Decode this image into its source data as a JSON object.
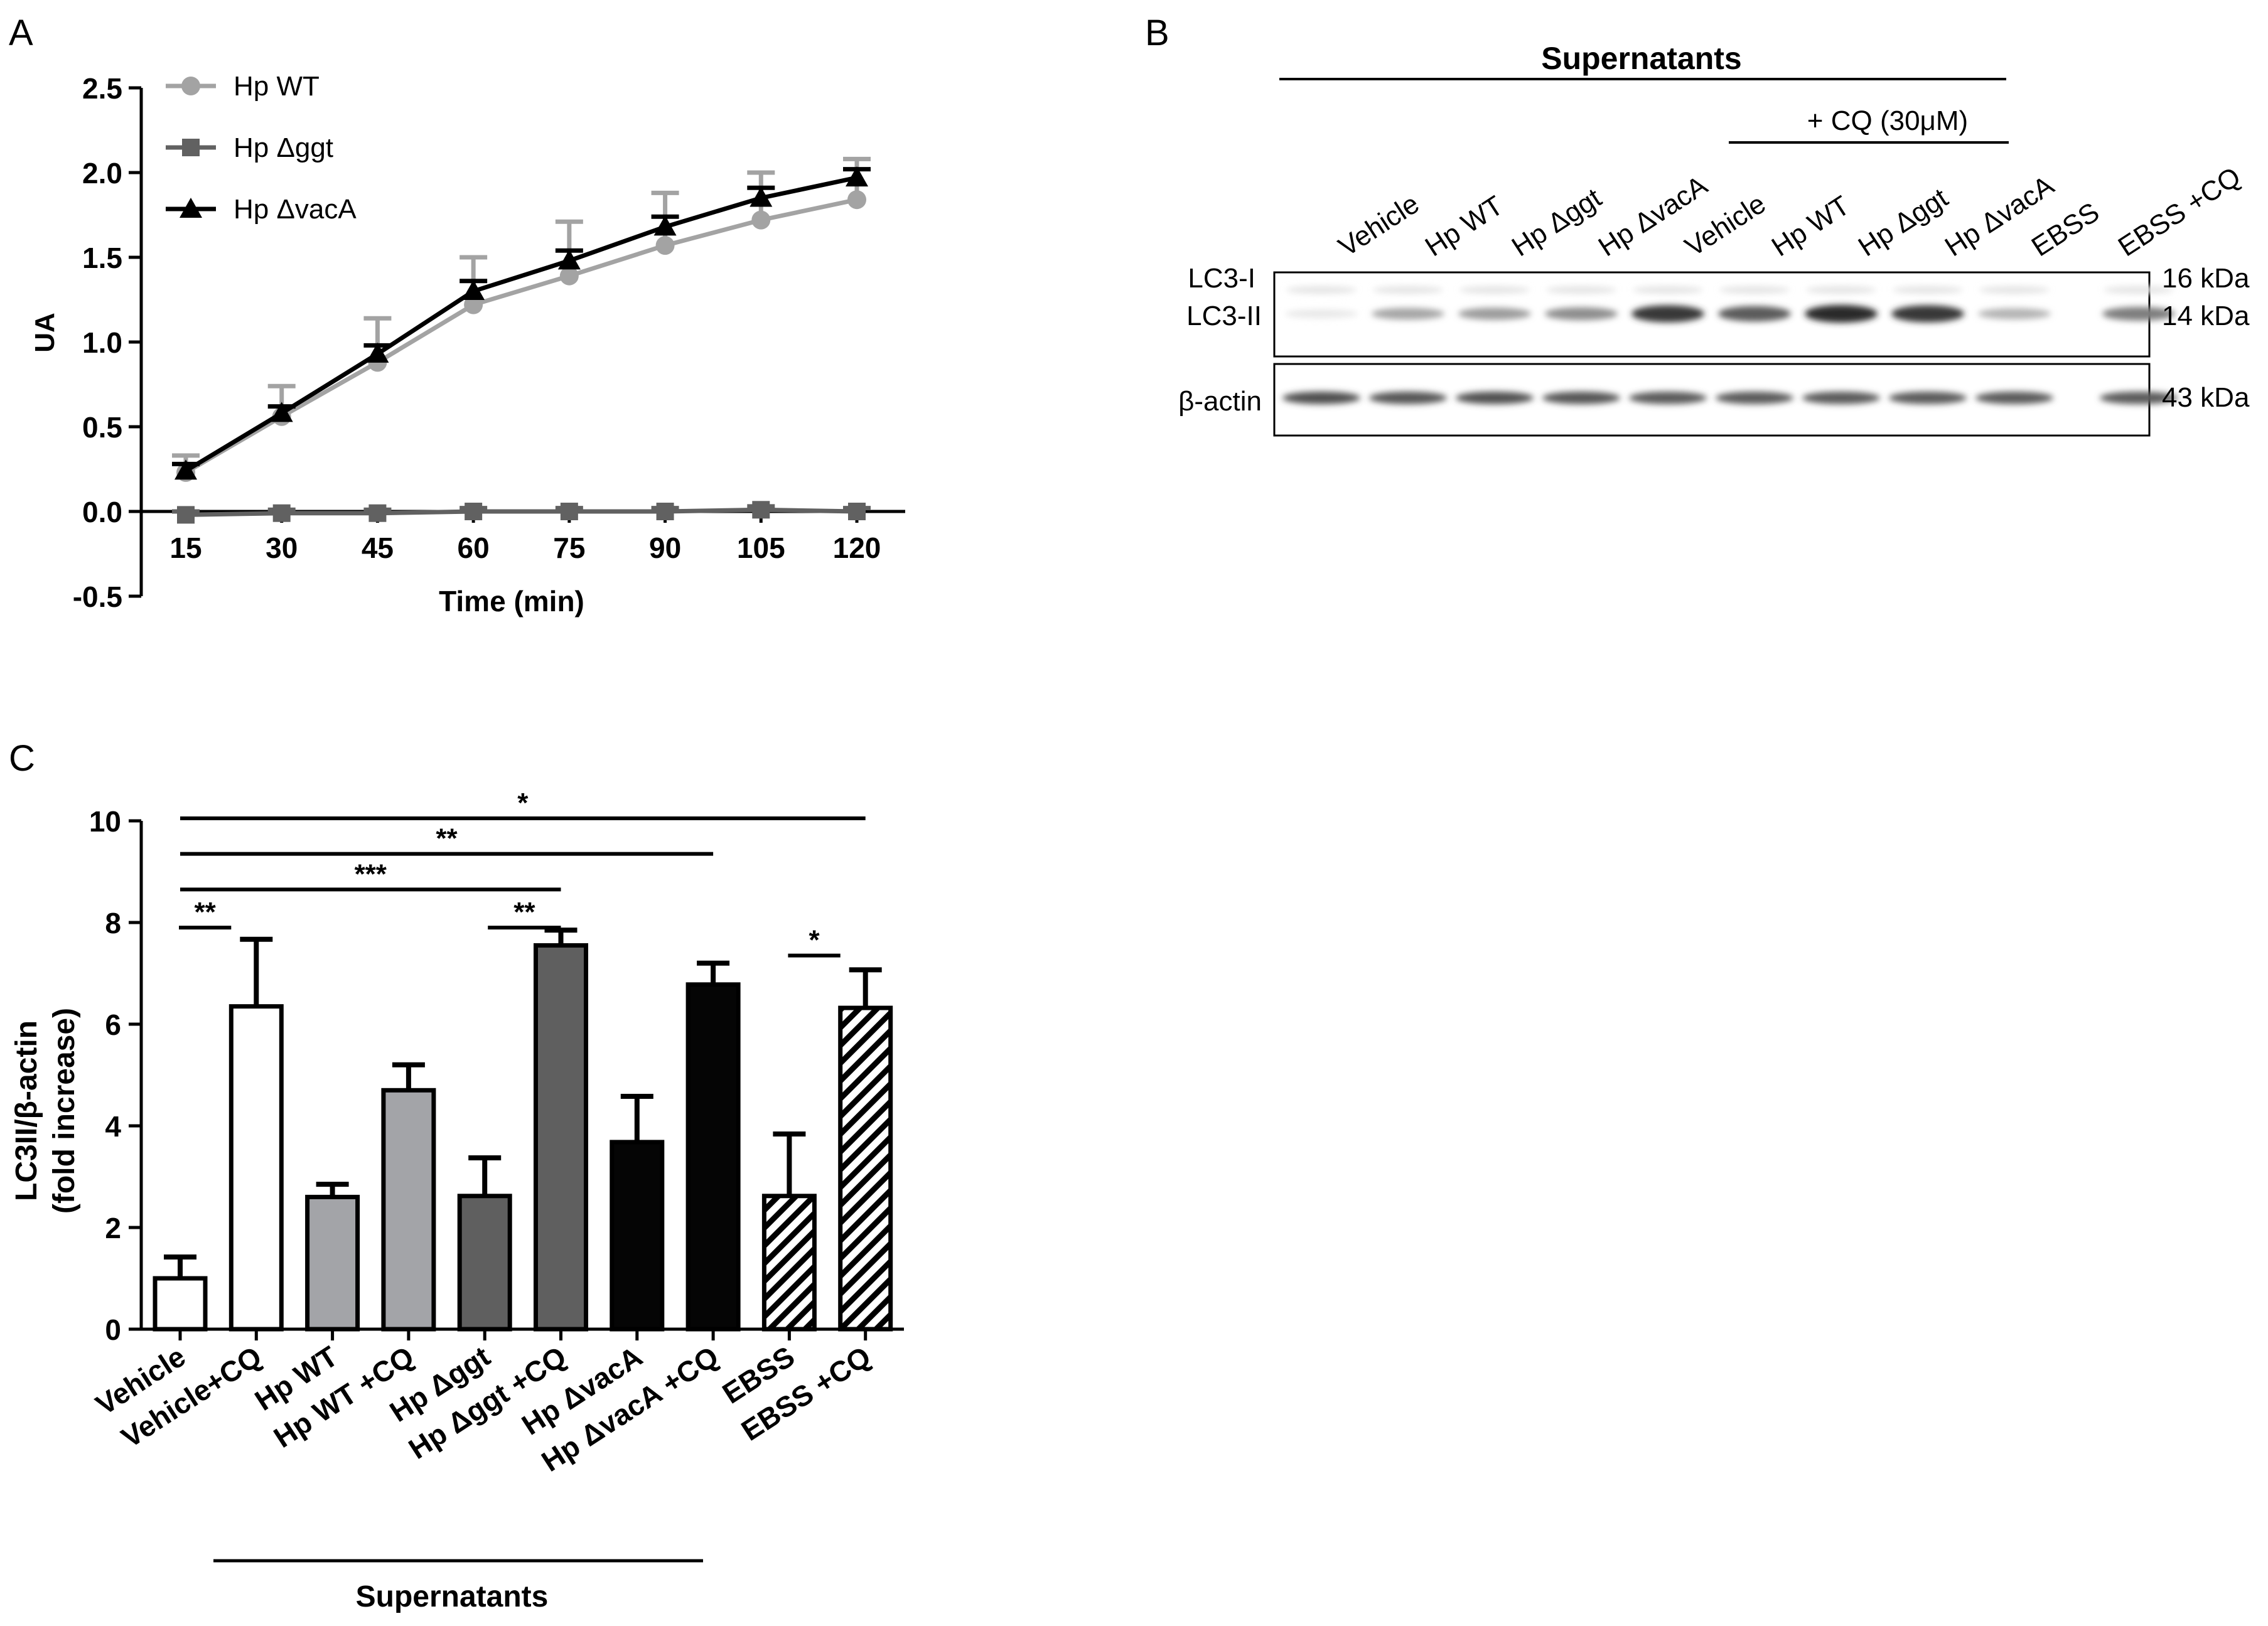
{
  "colors": {
    "wt": "#a3a3a3",
    "ggt": "#616161",
    "vaca": "#000000",
    "axis": "#000000",
    "bar_white": "#ffffff",
    "bar_wt": "#a3a4a8",
    "bar_ggt": "#5f5f5f",
    "bar_vaca": "#050505"
  },
  "chart_data": [
    {
      "panel": "A",
      "type": "line",
      "xlabel": "Time (min)",
      "ylabel": "UA",
      "ylim": [
        -0.5,
        2.5
      ],
      "y_ticks": [
        "-0.5",
        "0.0",
        "0.5",
        "1.0",
        "1.5",
        "2.0",
        "2.5"
      ],
      "x": [
        15,
        30,
        45,
        60,
        75,
        90,
        105,
        120
      ],
      "x_tick_labels": [
        "15",
        "30",
        "45",
        "60",
        "75",
        "90",
        "105",
        "120"
      ],
      "legend_position": "top-left",
      "series": [
        {
          "name": "Hp WT",
          "key": "wt",
          "marker": "circle",
          "values": [
            0.23,
            0.56,
            0.88,
            1.22,
            1.39,
            1.57,
            1.72,
            1.84
          ],
          "err": [
            0.1,
            0.18,
            0.26,
            0.28,
            0.32,
            0.31,
            0.28,
            0.24
          ]
        },
        {
          "name": "Hp Δggt",
          "key": "ggt",
          "marker": "square",
          "values": [
            -0.02,
            -0.01,
            -0.01,
            0.0,
            0.0,
            0.0,
            0.01,
            0.0
          ],
          "err": [
            0.02,
            0.02,
            0.02,
            0.02,
            0.02,
            0.02,
            0.02,
            0.02
          ]
        },
        {
          "name": "Hp ΔvacA",
          "key": "vaca",
          "marker": "triangle",
          "values": [
            0.24,
            0.58,
            0.93,
            1.3,
            1.48,
            1.68,
            1.85,
            1.97
          ],
          "err": [
            0.04,
            0.04,
            0.05,
            0.06,
            0.06,
            0.06,
            0.06,
            0.05
          ]
        }
      ]
    },
    {
      "panel": "C",
      "type": "bar",
      "ylabel_line1": "LC3II/β-actin",
      "ylabel_line2": "(fold increase)",
      "ylim": [
        0,
        10
      ],
      "y_ticks": [
        "0",
        "2",
        "4",
        "6",
        "8",
        "10"
      ],
      "categories": [
        "Vehicle",
        "Vehicle+CQ",
        "Hp WT",
        "Hp WT +CQ",
        "Hp Δggt",
        "Hp Δggt +CQ",
        "Hp ΔvacA",
        "Hp ΔvacA +CQ",
        "EBSS",
        "EBSS +CQ"
      ],
      "values": [
        1.0,
        6.35,
        2.6,
        4.7,
        2.62,
        7.55,
        3.68,
        6.78,
        2.62,
        6.32
      ],
      "err": [
        0.42,
        1.32,
        0.25,
        0.5,
        0.75,
        0.3,
        0.9,
        0.42,
        1.22,
        0.75
      ],
      "fills": [
        "bar_white",
        "bar_white",
        "bar_wt",
        "bar_wt",
        "bar_ggt",
        "bar_ggt",
        "bar_vaca",
        "bar_vaca",
        "hatch",
        "hatch"
      ],
      "group_label": "Supernatants",
      "significance": [
        {
          "from": 0,
          "to": 9,
          "level": 10.05,
          "label": "*"
        },
        {
          "from": 0,
          "to": 7,
          "level": 9.35,
          "label": "**"
        },
        {
          "from": 0,
          "to": 5,
          "level": 8.65,
          "label": "***"
        },
        {
          "from": 0,
          "to": 1,
          "level": 7.9,
          "label": "**"
        },
        {
          "from": 4,
          "to": 5,
          "level": 7.9,
          "label": "**"
        },
        {
          "from": 8,
          "to": 9,
          "level": 7.35,
          "label": "*"
        }
      ]
    }
  ],
  "panel_labels": {
    "a": "A",
    "b": "B",
    "c": "C"
  },
  "blot": {
    "title": "Supernatants",
    "cq_label": "+ CQ (30μM)",
    "lanes": [
      "Vehicle",
      "Hp WT",
      "Hp Δggt",
      "Hp ΔvacA",
      "Vehicle",
      "Hp WT",
      "Hp Δggt",
      "Hp ΔvacA",
      "EBSS",
      "EBSS +CQ"
    ],
    "rows": {
      "lc3i": "LC3-I",
      "lc3ii": "LC3-II",
      "actin": "β-actin"
    },
    "markers": {
      "kda16": "16 kDa",
      "kda14": "14 kDa",
      "kda43": "43 kDa"
    },
    "lc3ii_intensity": [
      0.1,
      0.38,
      0.42,
      0.48,
      0.85,
      0.7,
      0.9,
      0.85,
      0.32,
      0.55
    ],
    "actin_intensity": [
      0.75,
      0.72,
      0.74,
      0.72,
      0.7,
      0.7,
      0.7,
      0.7,
      0.7,
      0.7
    ]
  }
}
